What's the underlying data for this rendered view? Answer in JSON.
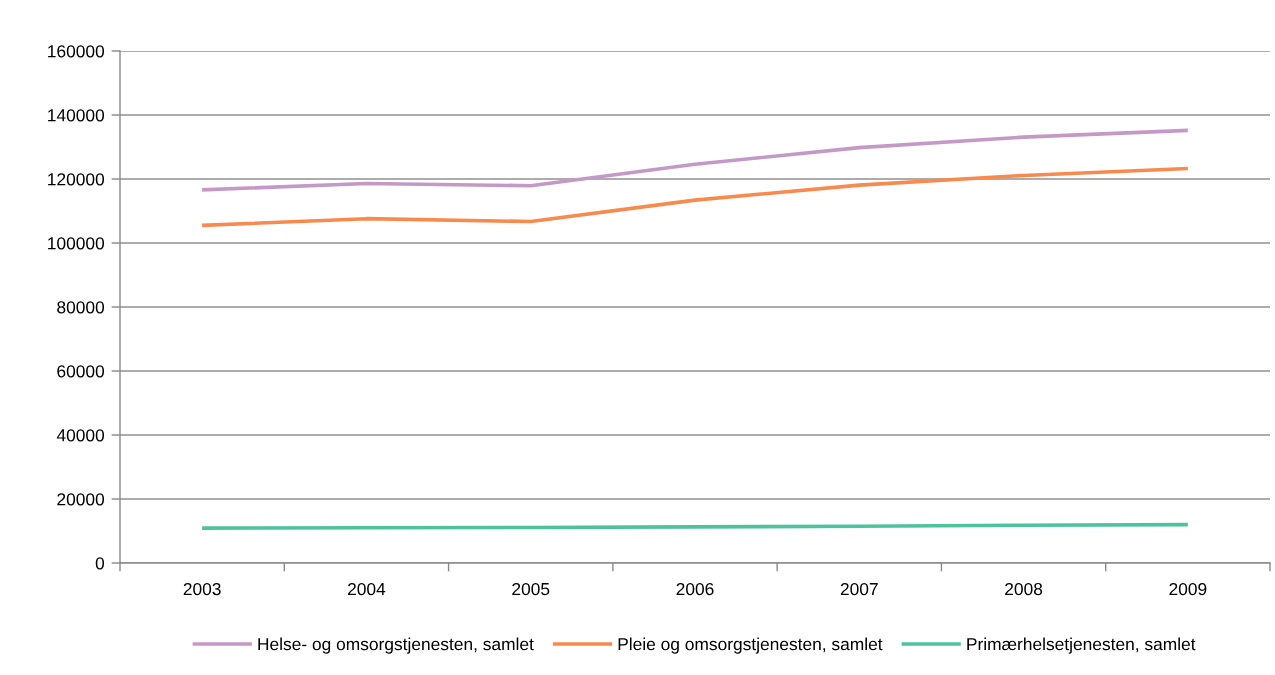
{
  "chart_data": {
    "type": "line",
    "categories": [
      "2003",
      "2004",
      "2005",
      "2006",
      "2007",
      "2008",
      "2009"
    ],
    "series": [
      {
        "name": "Helse- og omsorgstjenesten, samlet",
        "color": "#c499c8",
        "values": [
          116600,
          118600,
          117900,
          124600,
          129800,
          133100,
          135200
        ]
      },
      {
        "name": "Pleie og omsorgstjenesten, samlet",
        "color": "#f78a4c",
        "values": [
          105500,
          107600,
          106700,
          113400,
          118100,
          121100,
          123300
        ]
      },
      {
        "name": "Primærhelsetjenesten, samlet",
        "color": "#4dc39d",
        "values": [
          10900,
          11000,
          11100,
          11300,
          11500,
          11800,
          12000
        ]
      }
    ],
    "ylim": [
      0,
      160000
    ],
    "yticks": [
      0,
      20000,
      40000,
      60000,
      80000,
      100000,
      120000,
      140000,
      160000
    ],
    "grid": "y",
    "legend": "bottom",
    "marker": "none",
    "line_style": "solid"
  }
}
